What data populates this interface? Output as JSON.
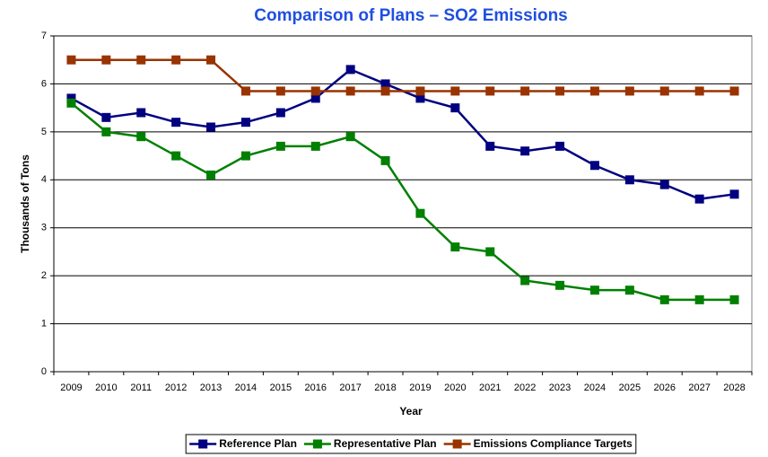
{
  "chart_data": {
    "type": "line",
    "title": "Comparison of Plans – SO2 Emissions",
    "x_label": "Year",
    "y_label": "Thousands of Tons",
    "categories": [
      "2009",
      "2010",
      "2011",
      "2012",
      "2013",
      "2014",
      "2015",
      "2016",
      "2017",
      "2018",
      "2019",
      "2020",
      "2021",
      "2022",
      "2023",
      "2024",
      "2025",
      "2026",
      "2027",
      "2028"
    ],
    "series": [
      {
        "name": "Reference Plan",
        "color": "#000080",
        "values": [
          5.7,
          5.3,
          5.4,
          5.2,
          5.1,
          5.2,
          5.4,
          5.7,
          6.3,
          6.0,
          5.7,
          5.5,
          4.7,
          4.6,
          4.7,
          4.3,
          4.0,
          3.9,
          3.6,
          3.7
        ]
      },
      {
        "name": "Representative Plan",
        "color": "#008000",
        "values": [
          5.6,
          5.0,
          4.9,
          4.5,
          4.1,
          4.5,
          4.7,
          4.7,
          4.9,
          4.4,
          3.3,
          2.6,
          2.5,
          1.9,
          1.8,
          1.7,
          1.7,
          1.5,
          1.5,
          1.5
        ]
      },
      {
        "name": "Emissions Compliance Targets",
        "color": "#993300",
        "values": [
          6.5,
          6.5,
          6.5,
          6.5,
          6.5,
          5.85,
          5.85,
          5.85,
          5.85,
          5.85,
          5.85,
          5.85,
          5.85,
          5.85,
          5.85,
          5.85,
          5.85,
          5.85,
          5.85,
          5.85
        ]
      }
    ],
    "ylim": [
      0,
      7
    ],
    "yticks": [
      0,
      1,
      2,
      3,
      4,
      5,
      6,
      7
    ],
    "grid": true,
    "legend": "bottom"
  }
}
